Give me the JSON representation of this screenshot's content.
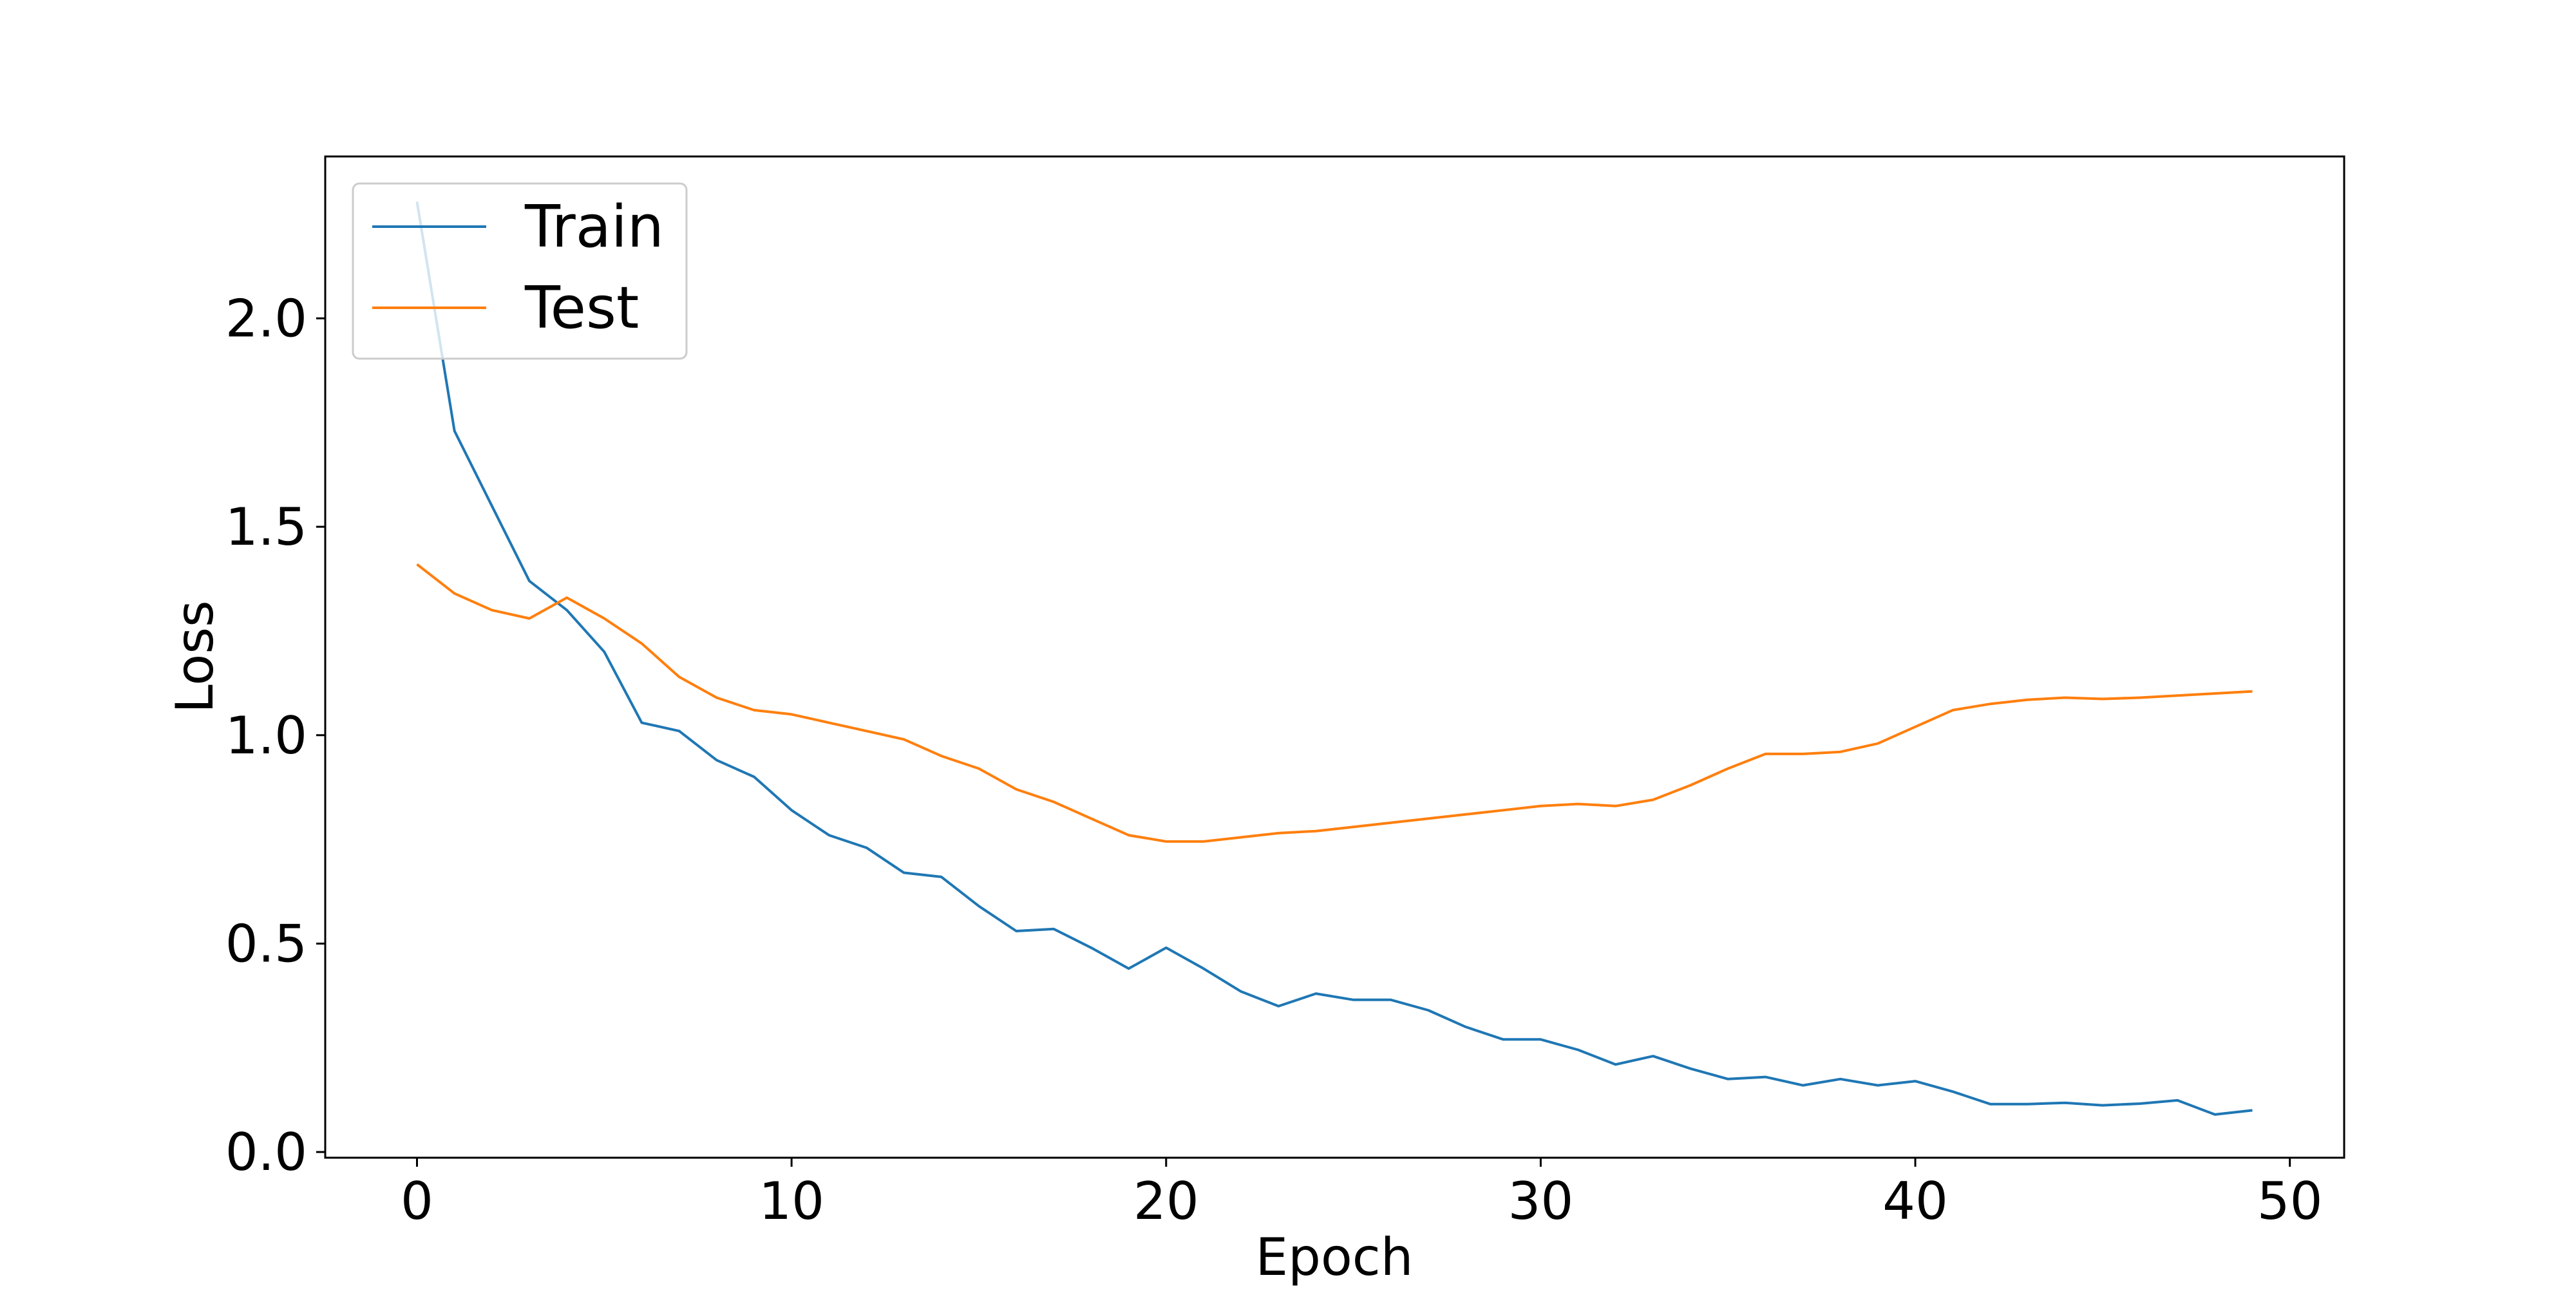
{
  "chart_data": {
    "type": "line",
    "title": "",
    "xlabel": "Epoch",
    "ylabel": "Loss",
    "xlim": [
      -2.45,
      51.45
    ],
    "ylim": [
      -0.0137,
      2.3884
    ],
    "xticks": [
      0,
      10,
      20,
      30,
      40,
      50
    ],
    "xtick_labels": [
      "0",
      "10",
      "20",
      "30",
      "40",
      "50"
    ],
    "yticks": [
      0.0,
      0.5,
      1.0,
      1.5,
      2.0
    ],
    "ytick_labels": [
      "0.0",
      "0.5",
      "1.0",
      "1.5",
      "2.0"
    ],
    "grid": false,
    "legend_position": "top-left",
    "x": [
      0,
      1,
      2,
      3,
      4,
      5,
      6,
      7,
      8,
      9,
      10,
      11,
      12,
      13,
      14,
      15,
      16,
      17,
      18,
      19,
      20,
      21,
      22,
      23,
      24,
      25,
      26,
      27,
      28,
      29,
      30,
      31,
      32,
      33,
      34,
      35,
      36,
      37,
      38,
      39,
      40,
      41,
      42,
      43,
      44,
      45,
      46,
      47,
      48,
      49
    ],
    "series": [
      {
        "name": "Train",
        "color": "#1f77b4",
        "values": [
          2.28,
          1.73,
          1.55,
          1.37,
          1.3,
          1.2,
          1.03,
          1.01,
          0.94,
          0.9,
          0.82,
          0.76,
          0.73,
          0.67,
          0.66,
          0.59,
          0.53,
          0.535,
          0.49,
          0.44,
          0.49,
          0.44,
          0.385,
          0.35,
          0.38,
          0.365,
          0.365,
          0.34,
          0.3,
          0.27,
          0.27,
          0.245,
          0.21,
          0.23,
          0.2,
          0.175,
          0.18,
          0.16,
          0.175,
          0.16,
          0.17,
          0.145,
          0.115,
          0.115,
          0.118,
          0.112,
          0.116,
          0.124,
          0.09,
          0.1
        ]
      },
      {
        "name": "Test",
        "color": "#ff7f0e",
        "values": [
          1.41,
          1.34,
          1.3,
          1.28,
          1.33,
          1.28,
          1.22,
          1.14,
          1.09,
          1.06,
          1.05,
          1.03,
          1.01,
          0.99,
          0.95,
          0.92,
          0.87,
          0.84,
          0.8,
          0.76,
          0.745,
          0.745,
          0.755,
          0.765,
          0.77,
          0.78,
          0.79,
          0.8,
          0.81,
          0.82,
          0.83,
          0.835,
          0.83,
          0.845,
          0.88,
          0.92,
          0.955,
          0.955,
          0.96,
          0.98,
          1.02,
          1.06,
          1.075,
          1.085,
          1.09,
          1.087,
          1.09,
          1.095,
          1.1,
          1.105
        ]
      }
    ]
  }
}
